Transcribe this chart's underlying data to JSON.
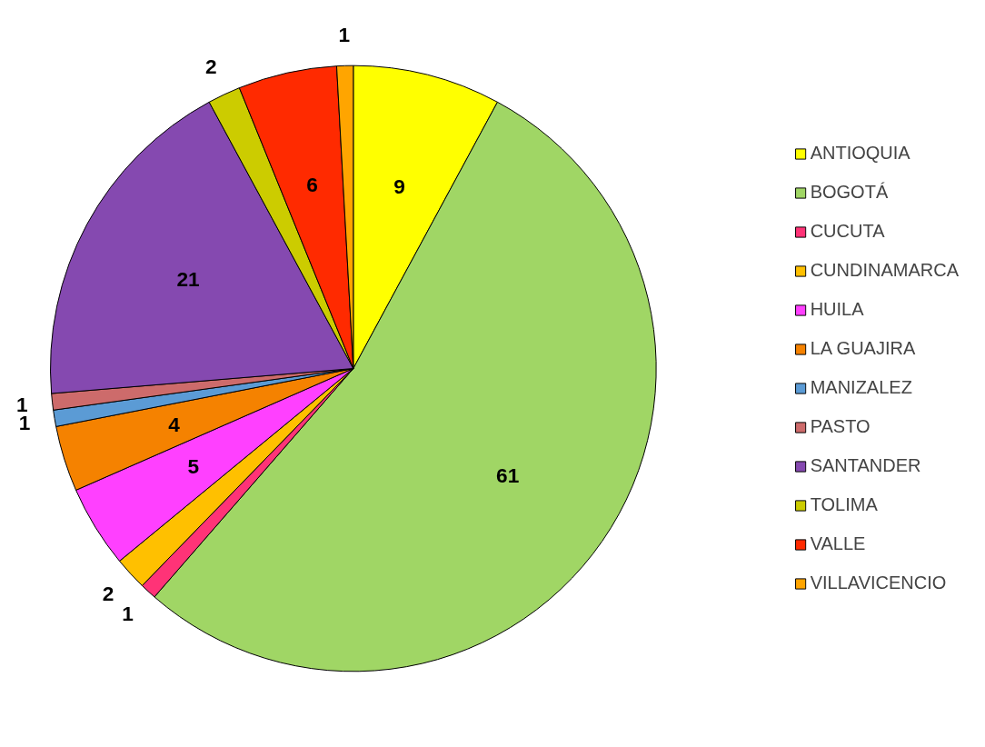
{
  "chart_data": {
    "type": "pie",
    "categories": [
      "ANTIOQUIA",
      "BOGOTÁ",
      "CUCUTA",
      "CUNDINAMARCA",
      "HUILA",
      "LA GUAJIRA",
      "MANIZALEZ",
      "PASTO",
      "SANTANDER",
      "TOLIMA",
      "VALLE",
      "VILLAVICENCIO"
    ],
    "values": [
      9,
      61,
      1,
      2,
      5,
      4,
      1,
      1,
      21,
      2,
      6,
      1
    ],
    "colors": [
      "#ffff00",
      "#a0d665",
      "#ff3377",
      "#ffc000",
      "#ff40ff",
      "#f58200",
      "#5b9bd5",
      "#cd6b6b",
      "#8549b0",
      "#cccc00",
      "#ff2a00",
      "#ffa500"
    ],
    "data_labels": true,
    "legend": "right"
  }
}
